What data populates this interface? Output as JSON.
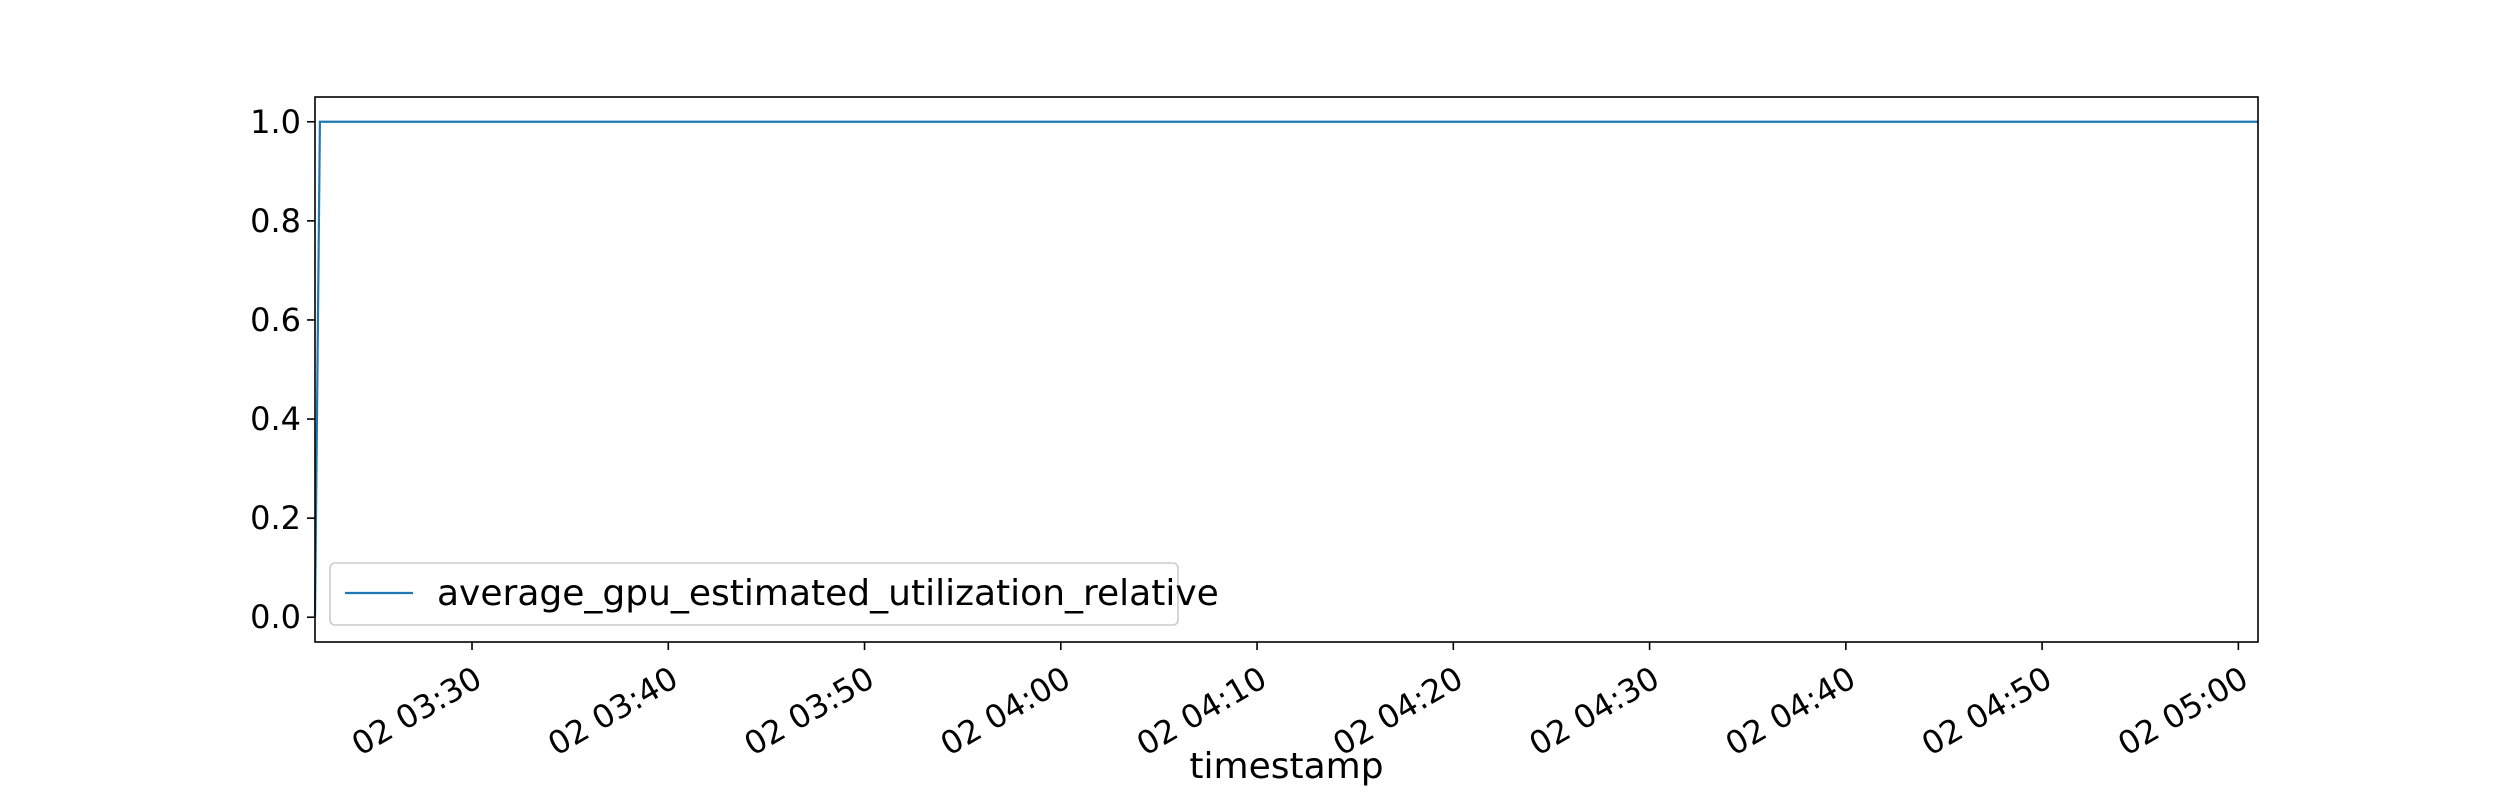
{
  "chart_data": {
    "type": "line",
    "title": "",
    "xlabel": "timestamp",
    "ylabel": "",
    "x_type": "datetime",
    "xlim": [
      "02 03:22",
      "02 05:01"
    ],
    "ylim": [
      -0.05,
      1.05
    ],
    "x_ticks": [
      "02 03:30",
      "02 03:40",
      "02 03:50",
      "02 04:00",
      "02 04:10",
      "02 04:20",
      "02 04:30",
      "02 04:40",
      "02 04:50",
      "02 05:00"
    ],
    "y_ticks": [
      "0.0",
      "0.2",
      "0.4",
      "0.6",
      "0.8",
      "1.0"
    ],
    "grid": false,
    "legend_position": "lower-left",
    "series": [
      {
        "name": "average_gpu_estimated_utilization_relative",
        "color": "#1f77b4",
        "x": [
          "02 03:22:00",
          "02 03:22:15",
          "02 05:01:00"
        ],
        "y": [
          0.0,
          1.0,
          1.0
        ]
      }
    ]
  }
}
